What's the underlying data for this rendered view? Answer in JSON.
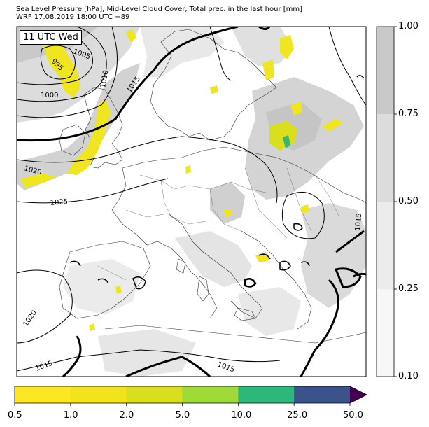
{
  "title_line1": "Sea Level Pressure [hPa], Mid-Level Cloud Cover, Total prec. in the last hour [mm]",
  "title_line2": "WRF 17.08.2019 18:00 UTC +89",
  "annotation": "11 UTC Wed",
  "isobar_labels": [
    "995",
    "1000",
    "1005",
    "1010",
    "1015",
    "1020",
    "1025",
    "1020",
    "1015",
    "1015",
    "1015"
  ],
  "cloud_colorbar": {
    "ticks": [
      "0.10",
      "0.25",
      "0.50",
      "0.75",
      "1.00"
    ],
    "colors": [
      "#f7f7f7",
      "#ececec",
      "#dcdcdc",
      "#c9c9c9"
    ]
  },
  "precip_colorbar": {
    "ticks": [
      "0.5",
      "1.0",
      "2.0",
      "5.0",
      "10.0",
      "25.0",
      "50.0"
    ],
    "colors": [
      "#fde725",
      "#f2e31f",
      "#d9de1f",
      "#a0da39",
      "#2db87b",
      "#3b528b",
      "#440154"
    ]
  },
  "colors": {
    "land": "#ffffff",
    "cloud_light": "#e6e6e6",
    "cloud_dark": "#c8c8c8",
    "precip": "#f0e521",
    "precip_heavy": "#35b779"
  }
}
